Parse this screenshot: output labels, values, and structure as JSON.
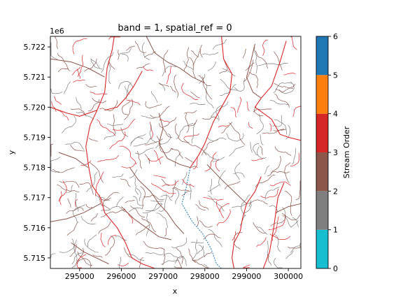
{
  "chart_data": {
    "type": "heatmap",
    "title": "band = 1, spatial_ref = 0",
    "xlabel": "x",
    "ylabel": "y",
    "y_offset_label": "1e6",
    "xlim": [
      294300,
      300300
    ],
    "ylim": [
      5.71465,
      5.72235
    ],
    "x_ticks": [
      295000,
      296000,
      297000,
      298000,
      299000,
      300000
    ],
    "y_ticks": [
      5.715,
      5.716,
      5.717,
      5.718,
      5.719,
      5.72,
      5.721,
      5.722
    ],
    "y_tick_labels": [
      "5.715",
      "5.716",
      "5.717",
      "5.718",
      "5.719",
      "5.720",
      "5.721",
      "5.722"
    ],
    "colorbar": {
      "label": "Stream Order",
      "range": [
        0,
        6
      ],
      "ticks": [
        0,
        1,
        2,
        3,
        4,
        5,
        6
      ],
      "colors": [
        "#17becf",
        "#7f7f7f",
        "#8c564b",
        "#d62728",
        "#ff7f0e",
        "#1f77b4"
      ]
    },
    "streams": [
      {
        "order": 4,
        "points": [
          [
            295830,
            5.72235
          ],
          [
            295780,
            5.7219
          ],
          [
            295660,
            5.7213
          ],
          [
            295600,
            5.7205
          ],
          [
            295420,
            5.7199
          ],
          [
            295250,
            5.7194
          ],
          [
            295150,
            5.7187
          ],
          [
            295220,
            5.718
          ],
          [
            295300,
            5.7174
          ],
          [
            295500,
            5.717
          ],
          [
            295600,
            5.7165
          ],
          [
            295900,
            5.716
          ],
          [
            296100,
            5.7155
          ],
          [
            296250,
            5.715
          ],
          [
            296500,
            5.7148
          ],
          [
            296800,
            5.71465
          ]
        ]
      },
      {
        "order": 4,
        "points": [
          [
            294300,
            5.72
          ],
          [
            294700,
            5.7198
          ],
          [
            295000,
            5.7197
          ],
          [
            295420,
            5.7199
          ]
        ]
      },
      {
        "order": 4,
        "points": [
          [
            296500,
            5.7212
          ],
          [
            296300,
            5.7207
          ],
          [
            296100,
            5.7203
          ],
          [
            295900,
            5.72
          ],
          [
            295600,
            5.7199
          ]
        ]
      },
      {
        "order": 4,
        "points": [
          [
            299950,
            5.7222
          ],
          [
            299800,
            5.7215
          ],
          [
            299600,
            5.7207
          ],
          [
            299350,
            5.7203
          ],
          [
            299200,
            5.72
          ],
          [
            299600,
            5.7196
          ],
          [
            299800,
            5.7191
          ],
          [
            300000,
            5.719
          ],
          [
            300300,
            5.7189
          ]
        ]
      },
      {
        "order": 4,
        "points": [
          [
            298400,
            5.72235
          ],
          [
            298450,
            5.7216
          ],
          [
            298650,
            5.7211
          ],
          [
            298600,
            5.7205
          ],
          [
            298400,
            5.72
          ],
          [
            298200,
            5.7195
          ],
          [
            298000,
            5.7188
          ],
          [
            297850,
            5.7184
          ],
          [
            297650,
            5.718
          ]
        ]
      },
      {
        "order": 4,
        "points": [
          [
            299350,
            5.7177
          ],
          [
            299200,
            5.7172
          ],
          [
            299000,
            5.7168
          ],
          [
            298900,
            5.7163
          ],
          [
            298850,
            5.7159
          ],
          [
            298700,
            5.7155
          ],
          [
            298650,
            5.715
          ],
          [
            298700,
            5.71465
          ]
        ]
      },
      {
        "order": 4,
        "points": [
          [
            299900,
            5.7175
          ],
          [
            299750,
            5.717
          ],
          [
            299700,
            5.7165
          ],
          [
            299650,
            5.716
          ],
          [
            299550,
            5.7152
          ],
          [
            299400,
            5.71465
          ]
        ]
      },
      {
        "order": 1,
        "points": [
          [
            297650,
            5.718
          ],
          [
            297550,
            5.7173
          ],
          [
            297450,
            5.7168
          ],
          [
            297700,
            5.7162
          ],
          [
            297950,
            5.7158
          ],
          [
            298150,
            5.7153
          ],
          [
            298280,
            5.7148
          ],
          [
            298400,
            5.71465
          ]
        ]
      },
      {
        "order": 3,
        "points": [
          [
            294300,
            5.7216
          ],
          [
            294800,
            5.7215
          ],
          [
            295200,
            5.7213
          ],
          [
            295600,
            5.721
          ]
        ]
      },
      {
        "order": 3,
        "points": [
          [
            294500,
            5.7185
          ],
          [
            294900,
            5.7183
          ],
          [
            295200,
            5.718
          ]
        ]
      },
      {
        "order": 3,
        "points": [
          [
            294300,
            5.7162
          ],
          [
            294700,
            5.7163
          ],
          [
            295100,
            5.7165
          ],
          [
            295500,
            5.7168
          ]
        ]
      },
      {
        "order": 3,
        "points": [
          [
            296600,
            5.72235
          ],
          [
            296800,
            5.7218
          ],
          [
            297100,
            5.7215
          ],
          [
            297400,
            5.7213
          ],
          [
            297700,
            5.721
          ],
          [
            298000,
            5.7208
          ]
        ]
      },
      {
        "order": 3,
        "points": [
          [
            296900,
            5.7198
          ],
          [
            297000,
            5.7193
          ],
          [
            296900,
            5.7188
          ],
          [
            297100,
            5.7183
          ],
          [
            297400,
            5.7181
          ],
          [
            297650,
            5.718
          ]
        ]
      },
      {
        "order": 3,
        "points": [
          [
            296200,
            5.718
          ],
          [
            296400,
            5.7176
          ],
          [
            296700,
            5.7172
          ],
          [
            296900,
            5.7168
          ],
          [
            297100,
            5.7165
          ],
          [
            297300,
            5.7161
          ],
          [
            297500,
            5.7158
          ]
        ]
      },
      {
        "order": 3,
        "points": [
          [
            296000,
            5.7167
          ],
          [
            296300,
            5.7163
          ],
          [
            296600,
            5.716
          ],
          [
            296900,
            5.7157
          ],
          [
            297200,
            5.7156
          ]
        ]
      },
      {
        "order": 3,
        "points": [
          [
            298050,
            5.7181
          ],
          [
            298400,
            5.7176
          ],
          [
            298700,
            5.7172
          ],
          [
            299000,
            5.7168
          ]
        ]
      },
      {
        "order": 3,
        "points": [
          [
            299200,
            5.7221
          ],
          [
            299100,
            5.7215
          ],
          [
            299000,
            5.721
          ],
          [
            299150,
            5.7205
          ],
          [
            299350,
            5.7203
          ]
        ]
      },
      {
        "order": 3,
        "points": [
          [
            294800,
            5.7155
          ],
          [
            295100,
            5.7152
          ],
          [
            295400,
            5.715
          ],
          [
            295700,
            5.7148
          ]
        ]
      },
      {
        "order": 3,
        "points": [
          [
            300300,
            5.7168
          ],
          [
            300000,
            5.7167
          ],
          [
            299700,
            5.7165
          ]
        ]
      }
    ]
  }
}
